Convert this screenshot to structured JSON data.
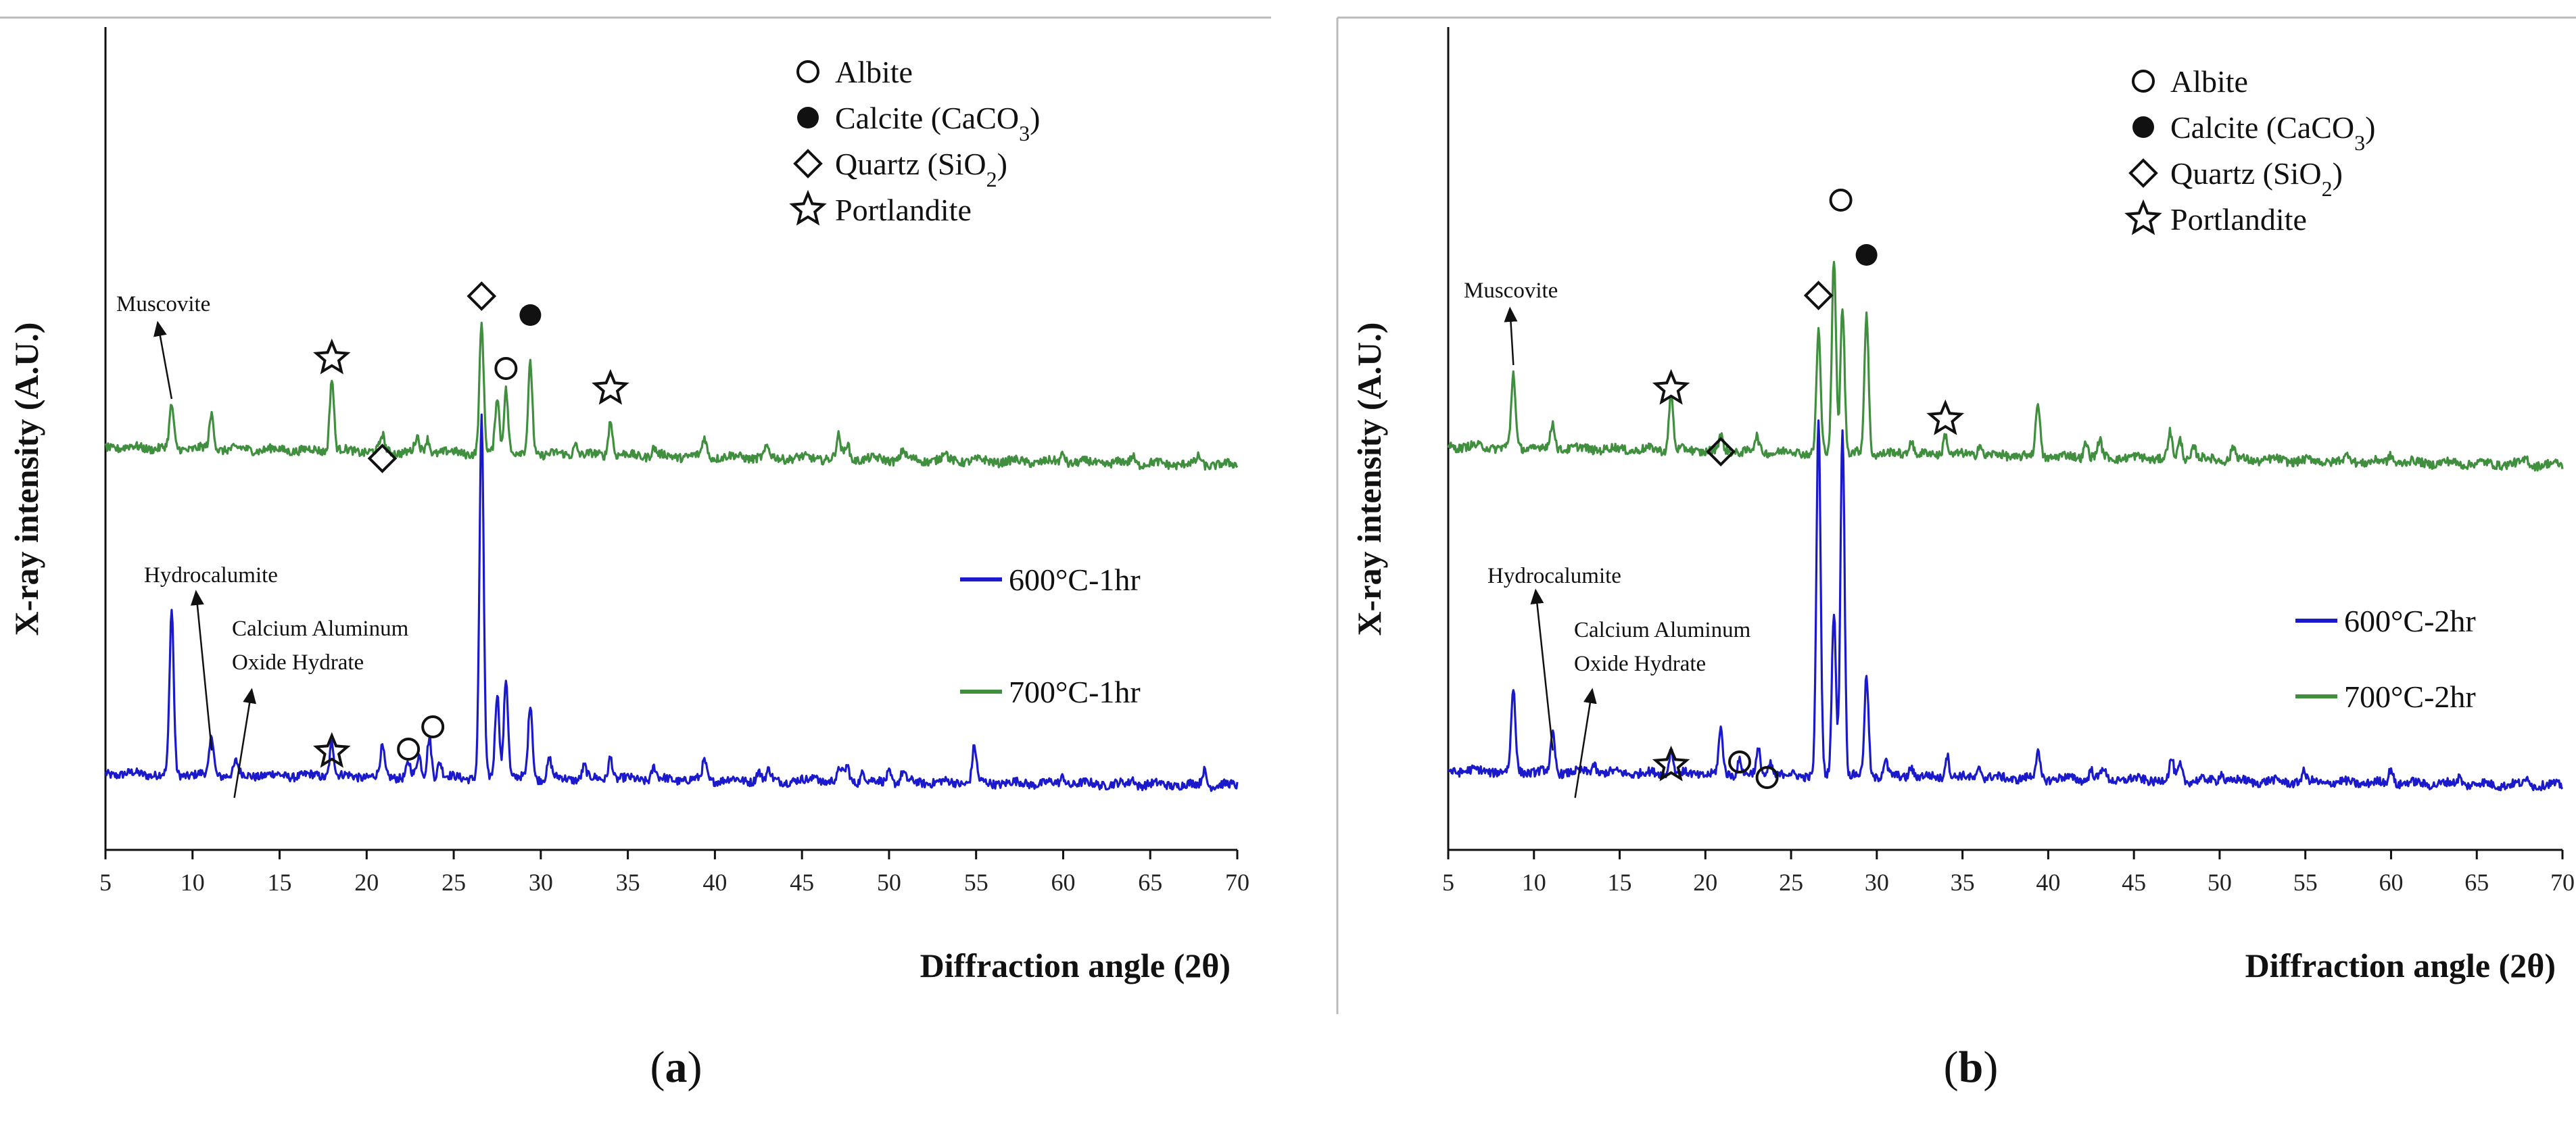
{
  "chart_data": [
    {
      "type": "line",
      "panel_label": "a",
      "xlabel": "Diffraction angle (2θ)",
      "ylabel": "X-ray intensity (A.U.)",
      "xlim": [
        5,
        70
      ],
      "xticks": [
        5,
        10,
        15,
        20,
        25,
        30,
        35,
        40,
        45,
        50,
        55,
        60,
        65,
        70
      ],
      "phase_legend": [
        {
          "symbol": "open-circle",
          "icon": "open-circle-icon",
          "label": "Albite"
        },
        {
          "symbol": "filled-circle",
          "icon": "filled-circle-icon",
          "label": "Calcite (CaCO",
          "sub": "3",
          "suffix": ")"
        },
        {
          "symbol": "diamond",
          "icon": "diamond-icon",
          "label": "Quartz (SiO",
          "sub": "2",
          "suffix": ")"
        },
        {
          "symbol": "star",
          "icon": "star-icon",
          "label": "Portlandite"
        }
      ],
      "series": [
        {
          "name": "600°C-1hr",
          "color": "#1a1acc",
          "baseline_start": 0.9,
          "baseline_end": 0.15,
          "peaks": [
            [
              8.8,
              10.5
            ],
            [
              11.1,
              2.5
            ],
            [
              12.5,
              0.8
            ],
            [
              18.0,
              2.2
            ],
            [
              20.9,
              1.8
            ],
            [
              22.4,
              0.9
            ],
            [
              23.0,
              1.3
            ],
            [
              23.6,
              2.6
            ],
            [
              24.2,
              1.0
            ],
            [
              26.6,
              23.0
            ],
            [
              27.5,
              5.5
            ],
            [
              28.0,
              6.5
            ],
            [
              29.4,
              4.8
            ],
            [
              30.5,
              1.2
            ],
            [
              32.5,
              0.8
            ],
            [
              34.0,
              1.5
            ],
            [
              36.5,
              0.8
            ],
            [
              39.4,
              1.2
            ],
            [
              42.5,
              0.6
            ],
            [
              43.1,
              0.6
            ],
            [
              45.8,
              0.5
            ],
            [
              47.2,
              0.8
            ],
            [
              47.6,
              1.0
            ],
            [
              48.5,
              0.6
            ],
            [
              50.0,
              0.7
            ],
            [
              50.8,
              0.6
            ],
            [
              54.9,
              2.3
            ],
            [
              60.0,
              0.5
            ],
            [
              64.0,
              0.4
            ],
            [
              68.1,
              1.0
            ]
          ]
        },
        {
          "name": "700°C-1hr",
          "color": "#3f8f3f",
          "baseline_start": 1.25,
          "baseline_end": 0.1,
          "peaks": [
            [
              8.8,
              2.7
            ],
            [
              11.1,
              2.2
            ],
            [
              18.0,
              4.7
            ],
            [
              20.9,
              1.0
            ],
            [
              22.9,
              0.9
            ],
            [
              23.5,
              0.9
            ],
            [
              26.6,
              8.2
            ],
            [
              27.5,
              3.7
            ],
            [
              28.0,
              4.2
            ],
            [
              29.4,
              5.8
            ],
            [
              32.0,
              0.7
            ],
            [
              34.0,
              2.3
            ],
            [
              36.5,
              0.5
            ],
            [
              39.4,
              1.2
            ],
            [
              43.0,
              0.6
            ],
            [
              47.1,
              1.4
            ],
            [
              47.6,
              1.0
            ],
            [
              50.8,
              0.6
            ],
            [
              53.2,
              0.5
            ],
            [
              60.0,
              0.6
            ],
            [
              64.0,
              0.5
            ],
            [
              67.8,
              0.5
            ]
          ]
        }
      ],
      "annotations": [
        {
          "text": "Muscovite"
        },
        {
          "text": "Hydrocalumite"
        },
        {
          "text": "Calcium Aluminum"
        },
        {
          "text": "Oxide Hydrate"
        }
      ]
    },
    {
      "type": "line",
      "panel_label": "b",
      "xlabel": "Diffraction angle (2θ)",
      "ylabel": "X-ray intensity (A.U.)",
      "xlim": [
        5,
        70
      ],
      "xticks": [
        5,
        10,
        15,
        20,
        25,
        30,
        35,
        40,
        45,
        50,
        55,
        60,
        65,
        70
      ],
      "phase_legend": [
        {
          "symbol": "open-circle",
          "icon": "open-circle-icon",
          "label": "Albite"
        },
        {
          "symbol": "filled-circle",
          "icon": "filled-circle-icon",
          "label": "Calcite (CaCO",
          "sub": "3",
          "suffix": ")"
        },
        {
          "symbol": "diamond",
          "icon": "diamond-icon",
          "label": "Quartz (SiO",
          "sub": "2",
          "suffix": ")"
        },
        {
          "symbol": "star",
          "icon": "star-icon",
          "label": "Portlandite"
        }
      ],
      "series": [
        {
          "name": "600°C-2hr",
          "color": "#1a1acc",
          "baseline_start": 1.1,
          "baseline_end": 0.15,
          "peaks": [
            [
              8.8,
              5.3
            ],
            [
              11.1,
              2.4
            ],
            [
              13.5,
              0.6
            ],
            [
              18.0,
              1.6
            ],
            [
              20.9,
              2.8
            ],
            [
              22.0,
              1.0
            ],
            [
              23.1,
              1.5
            ],
            [
              23.8,
              0.8
            ],
            [
              26.6,
              23.0
            ],
            [
              27.5,
              10.5
            ],
            [
              28.0,
              22.5
            ],
            [
              29.4,
              6.4
            ],
            [
              30.5,
              1.0
            ],
            [
              32.0,
              0.7
            ],
            [
              34.1,
              1.5
            ],
            [
              36.0,
              0.7
            ],
            [
              39.4,
              1.6
            ],
            [
              42.5,
              0.6
            ],
            [
              43.2,
              0.7
            ],
            [
              47.2,
              1.3
            ],
            [
              47.7,
              1.0
            ],
            [
              50.1,
              0.6
            ],
            [
              54.9,
              0.6
            ],
            [
              60.0,
              1.0
            ],
            [
              64.0,
              0.5
            ],
            [
              68.0,
              0.5
            ]
          ]
        },
        {
          "name": "700°C-2hr",
          "color": "#3f8f3f",
          "baseline_start": 1.3,
          "baseline_end": 0.1,
          "peaks": [
            [
              8.8,
              4.7
            ],
            [
              11.1,
              1.6
            ],
            [
              18.0,
              3.7
            ],
            [
              20.9,
              0.9
            ],
            [
              23.0,
              0.9
            ],
            [
              26.6,
              7.8
            ],
            [
              27.5,
              12.5
            ],
            [
              28.0,
              9.5
            ],
            [
              29.4,
              9.0
            ],
            [
              32.0,
              1.0
            ],
            [
              34.0,
              1.4
            ],
            [
              36.0,
              0.8
            ],
            [
              39.4,
              3.5
            ],
            [
              42.2,
              1.0
            ],
            [
              43.0,
              1.0
            ],
            [
              47.1,
              1.6
            ],
            [
              47.7,
              1.2
            ],
            [
              48.5,
              0.8
            ],
            [
              50.8,
              0.8
            ],
            [
              57.5,
              0.4
            ],
            [
              60.0,
              0.5
            ],
            [
              67.9,
              0.4
            ]
          ]
        }
      ],
      "annotations": [
        {
          "text": "Muscovite"
        },
        {
          "text": "Hydrocalumite"
        },
        {
          "text": "Calcium Aluminum"
        },
        {
          "text": "Oxide Hydrate"
        }
      ]
    }
  ]
}
